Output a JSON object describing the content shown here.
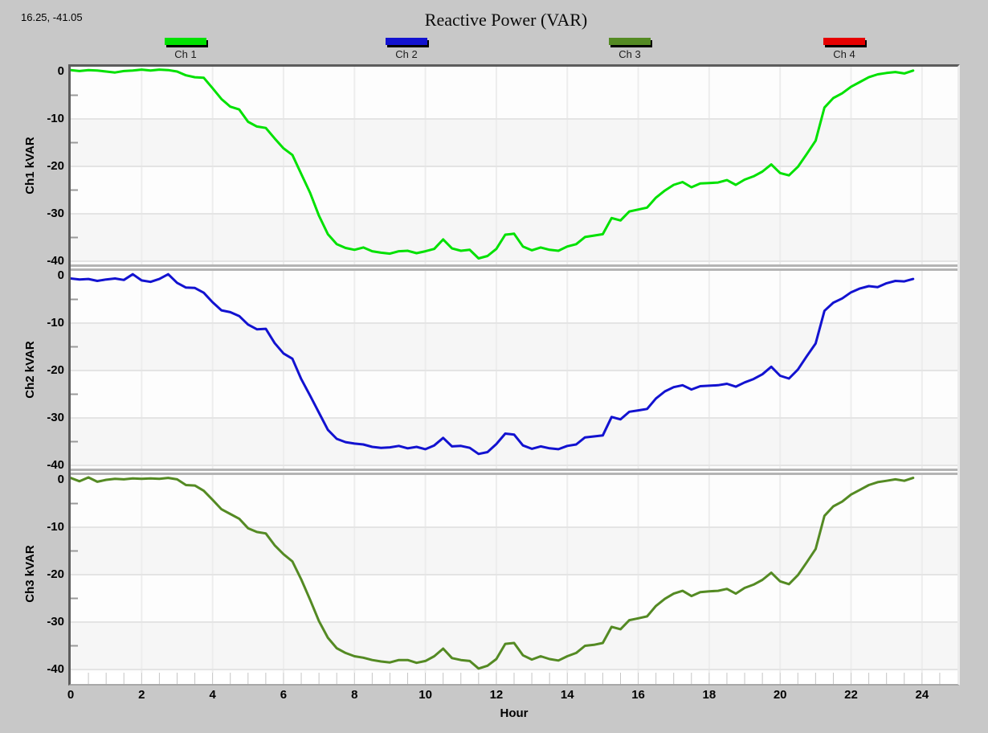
{
  "header": {
    "title": "Reactive Power (VAR)",
    "cursor_readout": "16.25, -41.05"
  },
  "colors": {
    "window_bg": "#c8c8c8",
    "plot_bg": "#fdfdfd",
    "band": "#f6f6f6",
    "grid_v": "#ededed",
    "grid_h": "#e4e4e4",
    "frame_dark": "#5c5c5c",
    "separator": "#b4b4b4",
    "minor_tick": "#9a9a9a",
    "axis_tick": "#c4c4c4",
    "ch1": "#00e100",
    "ch2": "#1212d0",
    "ch3": "#548a23",
    "ch4": "#e60000"
  },
  "chart_data": {
    "type": "line",
    "title": "Reactive Power (VAR)",
    "xlabel": "Hour",
    "x_start": 0,
    "x_step": 0.25,
    "x_range": [
      0,
      25
    ],
    "x_ticks": [
      0,
      2,
      4,
      6,
      8,
      10,
      12,
      14,
      16,
      18,
      20,
      22,
      24
    ],
    "y_range": [
      1,
      -40.7
    ],
    "y_ticks": [
      0,
      -10,
      -20,
      -30,
      -40
    ],
    "grid": true,
    "legend_position": "top",
    "legend": [
      {
        "label": "Ch 1",
        "color": "#00e100"
      },
      {
        "label": "Ch 2",
        "color": "#1212d0"
      },
      {
        "label": "Ch 3",
        "color": "#548a23"
      },
      {
        "label": "Ch 4",
        "color": "#e60000"
      }
    ],
    "panels": [
      {
        "name": "Ch 1",
        "ylabel": "Ch1 kVAR",
        "color": "#00e100",
        "values": [
          0.3,
          0.1,
          0.3,
          0.2,
          0.0,
          -0.2,
          0.1,
          0.2,
          0.4,
          0.2,
          0.4,
          0.3,
          0.0,
          -0.8,
          -1.2,
          -1.3,
          -3.5,
          -5.8,
          -7.4,
          -8.0,
          -10.6,
          -11.6,
          -11.9,
          -14.1,
          -16.2,
          -17.6,
          -21.6,
          -25.6,
          -30.4,
          -34.3,
          -36.4,
          -37.2,
          -37.6,
          -37.1,
          -37.9,
          -38.2,
          -38.4,
          -37.9,
          -37.8,
          -38.3,
          -37.9,
          -37.4,
          -35.4,
          -37.3,
          -37.8,
          -37.6,
          -39.4,
          -38.9,
          -37.4,
          -34.4,
          -34.2,
          -36.9,
          -37.7,
          -37.1,
          -37.6,
          -37.8,
          -36.9,
          -36.4,
          -34.9,
          -34.6,
          -34.3,
          -30.9,
          -31.4,
          -29.5,
          -29.1,
          -28.7,
          -26.6,
          -25.1,
          -23.9,
          -23.3,
          -24.4,
          -23.6,
          -23.5,
          -23.4,
          -22.9,
          -23.9,
          -22.8,
          -22.1,
          -21.1,
          -19.6,
          -21.4,
          -21.9,
          -20.1,
          -17.4,
          -14.6,
          -7.6,
          -5.6,
          -4.6,
          -3.2,
          -2.2,
          -1.2,
          -0.6,
          -0.3,
          -0.1,
          -0.4,
          0.2
        ]
      },
      {
        "name": "Ch 2",
        "ylabel": "Ch2 kVAR",
        "color": "#1212d0",
        "values": [
          -0.6,
          -0.8,
          -0.7,
          -1.1,
          -0.8,
          -0.6,
          -0.9,
          0.3,
          -1.0,
          -1.3,
          -0.7,
          0.3,
          -1.5,
          -2.5,
          -2.6,
          -3.6,
          -5.6,
          -7.3,
          -7.7,
          -8.5,
          -10.3,
          -11.3,
          -11.2,
          -14.2,
          -16.4,
          -17.5,
          -21.8,
          -25.3,
          -28.9,
          -32.5,
          -34.4,
          -35.1,
          -35.4,
          -35.6,
          -36.1,
          -36.3,
          -36.2,
          -35.9,
          -36.4,
          -36.1,
          -36.6,
          -35.8,
          -34.2,
          -36.0,
          -35.9,
          -36.3,
          -37.6,
          -37.2,
          -35.5,
          -33.3,
          -33.5,
          -35.8,
          -36.5,
          -36.0,
          -36.4,
          -36.6,
          -35.9,
          -35.6,
          -34.1,
          -33.9,
          -33.7,
          -29.8,
          -30.3,
          -28.7,
          -28.4,
          -28.1,
          -25.9,
          -24.4,
          -23.5,
          -23.1,
          -24.0,
          -23.3,
          -23.2,
          -23.1,
          -22.8,
          -23.4,
          -22.5,
          -21.8,
          -20.8,
          -19.2,
          -21.1,
          -21.7,
          -19.8,
          -17.0,
          -14.3,
          -7.4,
          -5.7,
          -4.8,
          -3.5,
          -2.7,
          -2.2,
          -2.4,
          -1.6,
          -1.1,
          -1.2,
          -0.7
        ]
      },
      {
        "name": "Ch 3",
        "ylabel": "Ch3 kVAR",
        "color": "#548a23",
        "values": [
          0.4,
          -0.3,
          0.5,
          -0.4,
          0.0,
          0.2,
          0.1,
          0.3,
          0.2,
          0.3,
          0.2,
          0.4,
          0.1,
          -1.1,
          -1.2,
          -2.3,
          -4.2,
          -6.2,
          -7.2,
          -8.2,
          -10.2,
          -11.0,
          -11.3,
          -13.8,
          -15.7,
          -17.2,
          -21.0,
          -25.3,
          -29.8,
          -33.3,
          -35.5,
          -36.5,
          -37.2,
          -37.5,
          -38.0,
          -38.3,
          -38.5,
          -38.0,
          -38.0,
          -38.6,
          -38.2,
          -37.2,
          -35.6,
          -37.6,
          -38.0,
          -38.2,
          -39.8,
          -39.2,
          -37.8,
          -34.6,
          -34.4,
          -37.0,
          -37.9,
          -37.2,
          -37.8,
          -38.1,
          -37.2,
          -36.5,
          -35.0,
          -34.8,
          -34.4,
          -31.0,
          -31.5,
          -29.6,
          -29.2,
          -28.8,
          -26.6,
          -25.1,
          -24.0,
          -23.4,
          -24.5,
          -23.7,
          -23.5,
          -23.4,
          -23.0,
          -24.0,
          -22.8,
          -22.1,
          -21.1,
          -19.6,
          -21.4,
          -22.0,
          -20.1,
          -17.4,
          -14.6,
          -7.6,
          -5.6,
          -4.6,
          -3.1,
          -2.1,
          -1.1,
          -0.5,
          -0.2,
          0.1,
          -0.2,
          0.4
        ]
      }
    ]
  }
}
